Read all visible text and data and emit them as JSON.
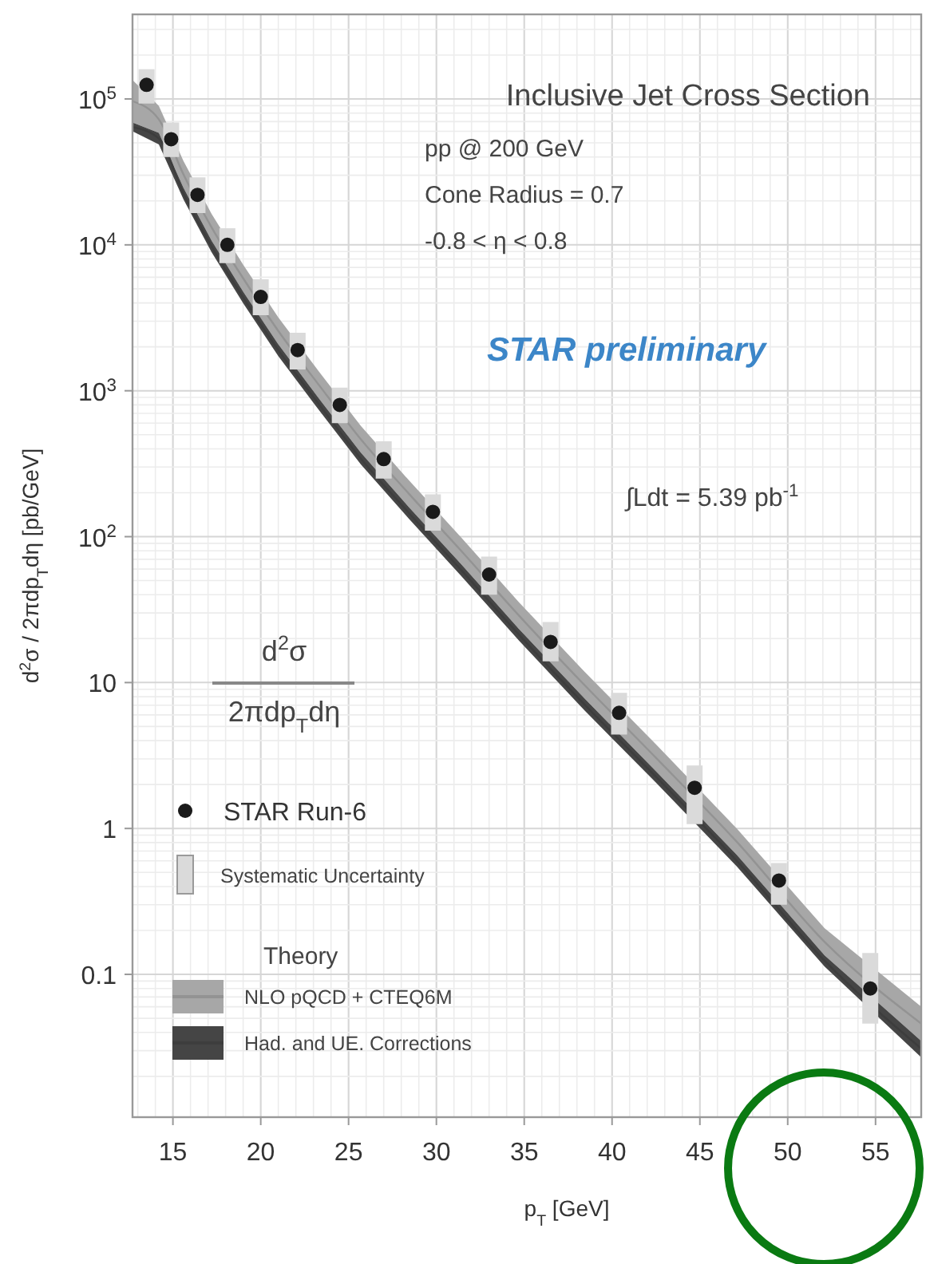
{
  "chart_data": {
    "type": "scatter",
    "title": "Inclusive Jet Cross Section",
    "xlabel": "p$_{T}$ [GeV]",
    "ylabel": "d$^{2}$σ / 2πdp$_{T}$dη [pb/GeV]",
    "log": "y",
    "grid": true,
    "legend": "bottom left",
    "legend_title": "Theory",
    "xlim": [
      12.7,
      57.6
    ],
    "xticks": [
      15,
      20,
      25,
      30,
      35,
      40,
      45,
      50,
      55
    ],
    "ylim": [
      0.0105,
      380000
    ],
    "yticks": [
      {
        "value": 100000,
        "label": "10$^{5}$"
      },
      {
        "value": 10000,
        "label": "10$^{4}$"
      },
      {
        "value": 1000,
        "label": "10$^{3}$"
      },
      {
        "value": 100,
        "label": "10$^{2}$"
      },
      10,
      1,
      0.1
    ],
    "annotations": [
      "pp @ 200 GeV",
      "Cone Radius = 0.7",
      "-0.8 < η < 0.8",
      "STAR preliminary",
      "∫Ldt = 5.39 pb$^{-1}$",
      "d$^{2}$σ",
      "2πdp$_{T}$dη",
      "Systematic Uncertainty"
    ],
    "series": [
      {
        "name": "NLO pQCD + CTEQ6M",
        "type": "line",
        "color": "#939393",
        "x": [
          12.7,
          14.2,
          15.6,
          17.2,
          19.0,
          21.0,
          23.3,
          25.7,
          28.4,
          31.4,
          34.7,
          38.4,
          42.5,
          47.1,
          52.1,
          57.6
        ],
        "values": [
          96500,
          72400,
          30400,
          13200,
          5900,
          2570,
          1100,
          465,
          199,
          80.2,
          28.8,
          9.7,
          3.05,
          0.81,
          0.167,
          0.046
        ],
        "upper": [
          135000,
          89500,
          37600,
          16300,
          7300,
          3180,
          1360,
          574,
          246,
          99,
          35.5,
          12.0,
          3.77,
          1.0,
          0.207,
          0.06
        ],
        "lower": [
          69000,
          58600,
          24600,
          10700,
          4770,
          2080,
          888,
          376,
          161,
          65,
          23.3,
          7.85,
          2.47,
          0.66,
          0.135,
          0.035
        ]
      },
      {
        "name": "Had. and UE. Corrections",
        "type": "line",
        "color": "#3d3d3d",
        "x": [
          12.7,
          14.2,
          15.6,
          17.2,
          19.0,
          21.0,
          23.3,
          25.7,
          28.4,
          31.4,
          34.7,
          38.4,
          42.5,
          47.1,
          52.1,
          57.6
        ],
        "values": [
          64300,
          53500,
          22500,
          9760,
          4360,
          1900,
          811,
          343,
          147,
          59.2,
          21.3,
          7.14,
          2.26,
          0.6,
          0.124,
          0.031
        ],
        "upper": [
          69000,
          58600,
          24600,
          10700,
          4770,
          2080,
          888,
          376,
          161,
          65,
          23.3,
          7.85,
          2.47,
          0.66,
          0.135,
          0.035
        ],
        "lower": [
          60000,
          48800,
          20500,
          8900,
          3980,
          1730,
          740,
          313,
          134,
          54,
          19.4,
          6.5,
          2.06,
          0.55,
          0.113,
          0.027
        ]
      },
      {
        "name": "STAR Run-6",
        "color": "#1a1a1a",
        "marker": "circle",
        "x": [
          13.5,
          14.9,
          16.4,
          18.1,
          20.0,
          22.1,
          24.5,
          27.0,
          29.8,
          33.0,
          36.5,
          40.4,
          44.7,
          49.5,
          54.7
        ],
        "values": [
          125000,
          53000,
          22000,
          10000,
          4400,
          1900,
          800,
          340,
          148,
          55,
          19,
          6.2,
          1.9,
          0.44,
          0.08
        ],
        "errors": [
          [
            93000,
            160000
          ],
          [
            40000,
            69000
          ],
          [
            16500,
            29000
          ],
          [
            7500,
            13000
          ],
          [
            3300,
            5800
          ],
          [
            1400,
            2500
          ],
          [
            600,
            1050
          ],
          [
            250,
            450
          ],
          [
            110,
            195
          ],
          [
            40,
            73
          ],
          [
            14,
            26
          ],
          [
            4.4,
            8.5
          ],
          [
            1.07,
            2.7
          ],
          [
            0.3,
            0.58
          ],
          [
            0.046,
            0.14
          ]
        ]
      }
    ]
  }
}
